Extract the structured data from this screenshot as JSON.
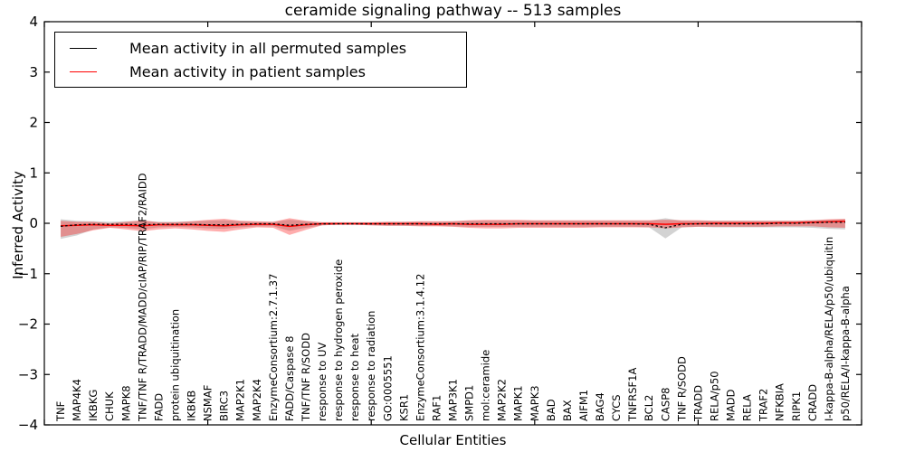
{
  "title": "ceramide signaling pathway -- 513 samples",
  "xlabel": "Cellular Entities",
  "ylabel": "Inferred Activity",
  "legend": {
    "items": [
      {
        "label": "Mean activity in all permuted samples",
        "color": "#000000"
      },
      {
        "label": "Mean activity in patient samples",
        "color": "#ff0000"
      }
    ]
  },
  "chart_data": {
    "type": "line",
    "title": "ceramide signaling pathway -- 513 samples",
    "xlabel": "Cellular Entities",
    "ylabel": "Inferred Activity",
    "ylim": [
      -4,
      4
    ],
    "yticks": [
      -4,
      -3,
      -2,
      -1,
      0,
      1,
      2,
      3,
      4
    ],
    "xlim": [
      0,
      50
    ],
    "xticks": [
      0,
      10,
      20,
      30,
      40,
      50
    ],
    "grid": false,
    "legend_position": "upper left",
    "categories": [
      "TNF",
      "MAP4K4",
      "IKBKG",
      "CHUK",
      "MAPK8",
      "TNF/TNF R/TRADD/MADD/cIAP/RIP/TRAF2/RAIDD",
      "FADD",
      "protein ubiquitination",
      "IKBKB",
      "NSMAF",
      "BIRC3",
      "MAP2K1",
      "MAP2K4",
      "EnzymeConsortium:2.7.1.37",
      "FADD/Caspase 8",
      "TNF/TNF R/SODD",
      "response to UV",
      "response to hydrogen peroxide",
      "response to heat",
      "response to radiation",
      "GO:0005551",
      "KSR1",
      "EnzymeConsortium:3.1.4.12",
      "RAF1",
      "MAP3K1",
      "SMPD1",
      "mol:ceramide",
      "MAP2K2",
      "MAPK1",
      "MAPK3",
      "BAD",
      "BAX",
      "AIFM1",
      "BAG4",
      "CYCS",
      "TNFRSF1A",
      "BCL2",
      "CASP8",
      "TNF R/SODD",
      "TRADD",
      "RELA/p50",
      "MADD",
      "RELA",
      "TRAF2",
      "NFKBIA",
      "RIPK1",
      "CRADD",
      "I-kappa-B-alpha/RELA/p50/ubiquitin",
      "p50/RELA/I-kappa-B-alpha"
    ],
    "series": [
      {
        "name": "Mean activity in all permuted samples",
        "color": "#000000",
        "style": "dashed",
        "values": [
          -0.06,
          -0.03,
          -0.02,
          -0.02,
          -0.02,
          -0.03,
          -0.02,
          -0.02,
          -0.02,
          -0.03,
          -0.03,
          -0.02,
          -0.01,
          -0.01,
          -0.04,
          -0.02,
          -0.01,
          -0.01,
          -0.01,
          -0.01,
          -0.01,
          -0.01,
          -0.01,
          -0.01,
          -0.01,
          -0.01,
          -0.01,
          -0.01,
          -0.01,
          -0.01,
          -0.01,
          -0.01,
          -0.01,
          -0.01,
          -0.01,
          -0.01,
          -0.02,
          -0.09,
          -0.02,
          -0.01,
          -0.01,
          -0.01,
          -0.01,
          -0.01,
          0.0,
          0.0,
          0.01,
          0.02,
          0.02
        ]
      },
      {
        "name": "Mean activity in patient samples",
        "color": "#ff0000",
        "style": "solid",
        "values": [
          -0.05,
          -0.04,
          -0.03,
          -0.04,
          -0.04,
          -0.05,
          -0.03,
          -0.03,
          -0.03,
          -0.04,
          -0.05,
          -0.03,
          -0.02,
          -0.02,
          -0.06,
          -0.03,
          -0.01,
          -0.01,
          -0.01,
          -0.01,
          -0.01,
          -0.01,
          -0.01,
          -0.02,
          -0.01,
          -0.02,
          -0.02,
          -0.02,
          -0.01,
          -0.01,
          -0.01,
          -0.01,
          -0.01,
          -0.01,
          -0.01,
          -0.01,
          -0.01,
          -0.02,
          -0.01,
          -0.01,
          0.0,
          0.0,
          0.0,
          0.0,
          0.01,
          0.01,
          0.02,
          0.03,
          0.04
        ]
      }
    ],
    "bands": [
      {
        "name": "permuted-range",
        "color": "rgba(128,128,128,0.35)",
        "upper": [
          0.08,
          0.05,
          0.04,
          0.03,
          0.04,
          0.05,
          0.03,
          0.03,
          0.04,
          0.05,
          0.06,
          0.04,
          0.03,
          0.03,
          0.07,
          0.04,
          0.02,
          0.02,
          0.02,
          0.02,
          0.03,
          0.03,
          0.03,
          0.03,
          0.04,
          0.05,
          0.05,
          0.05,
          0.05,
          0.05,
          0.05,
          0.05,
          0.05,
          0.05,
          0.05,
          0.05,
          0.05,
          0.1,
          0.05,
          0.05,
          0.05,
          0.05,
          0.05,
          0.05,
          0.05,
          0.05,
          0.06,
          0.07,
          0.08
        ],
        "lower": [
          -0.31,
          -0.24,
          -0.12,
          -0.08,
          -0.09,
          -0.12,
          -0.08,
          -0.07,
          -0.08,
          -0.1,
          -0.11,
          -0.08,
          -0.06,
          -0.06,
          -0.15,
          -0.09,
          -0.04,
          -0.03,
          -0.03,
          -0.04,
          -0.05,
          -0.05,
          -0.05,
          -0.05,
          -0.06,
          -0.07,
          -0.07,
          -0.07,
          -0.07,
          -0.07,
          -0.07,
          -0.07,
          -0.07,
          -0.07,
          -0.07,
          -0.07,
          -0.08,
          -0.3,
          -0.08,
          -0.07,
          -0.08,
          -0.08,
          -0.08,
          -0.08,
          -0.08,
          -0.08,
          -0.09,
          -0.11,
          -0.12
        ]
      },
      {
        "name": "patient-range",
        "color": "rgba(255,0,0,0.32)",
        "upper": [
          0.05,
          0.03,
          0.03,
          0.0,
          0.03,
          0.06,
          0.02,
          0.02,
          0.04,
          0.07,
          0.09,
          0.05,
          0.04,
          0.03,
          0.1,
          0.05,
          0.02,
          0.02,
          0.02,
          0.02,
          0.03,
          0.03,
          0.04,
          0.04,
          0.04,
          0.06,
          0.07,
          0.07,
          0.07,
          0.06,
          0.06,
          0.06,
          0.06,
          0.06,
          0.06,
          0.06,
          0.06,
          0.07,
          0.06,
          0.06,
          0.05,
          0.05,
          0.05,
          0.05,
          0.05,
          0.05,
          0.06,
          0.08,
          0.09
        ],
        "lower": [
          -0.27,
          -0.21,
          -0.14,
          -0.09,
          -0.12,
          -0.16,
          -0.12,
          -0.1,
          -0.12,
          -0.15,
          -0.17,
          -0.12,
          -0.08,
          -0.09,
          -0.23,
          -0.13,
          -0.04,
          -0.03,
          -0.03,
          -0.04,
          -0.05,
          -0.05,
          -0.06,
          -0.06,
          -0.07,
          -0.09,
          -0.1,
          -0.1,
          -0.09,
          -0.09,
          -0.09,
          -0.09,
          -0.09,
          -0.08,
          -0.08,
          -0.08,
          -0.08,
          -0.1,
          -0.08,
          -0.07,
          -0.07,
          -0.07,
          -0.07,
          -0.07,
          -0.06,
          -0.06,
          -0.06,
          -0.08,
          -0.09
        ]
      }
    ]
  }
}
